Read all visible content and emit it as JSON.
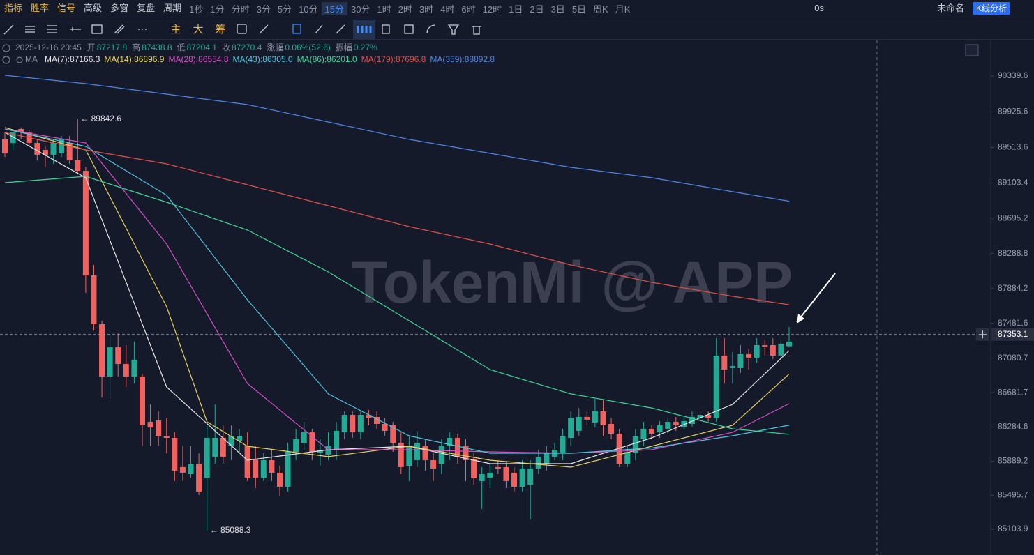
{
  "toolbar": {
    "items": [
      "指标",
      "胜率",
      "信号",
      "高级",
      "多窗",
      "复盘",
      "周期"
    ],
    "timeframes": [
      "1秒",
      "1分",
      "分时",
      "3分",
      "5分",
      "10分",
      "15分",
      "30分",
      "1时",
      "2时",
      "3时",
      "4时",
      "6时",
      "12时",
      "1日",
      "2日",
      "3日",
      "5日",
      "周K",
      "月K"
    ],
    "active_timeframe": "15分",
    "timer": "0s",
    "layout_name": "未命名",
    "analysis_button": "K线分析"
  },
  "drawing_tools": {
    "labels": [
      "主",
      "大",
      "筹"
    ]
  },
  "chart_data": {
    "type": "candlestick",
    "info": {
      "time": "2025-12-16 20:45",
      "fields": [
        {
          "label": "开",
          "value": 87217.8
        },
        {
          "label": "高",
          "value": 87438.8
        },
        {
          "label": "低",
          "value": 87204.1
        },
        {
          "label": "收",
          "value": 87270.4
        }
      ],
      "change_label": "涨幅",
      "change": "0.06%(52.6)",
      "amplitude_label": "振幅",
      "amplitude": "0.27%"
    },
    "indicator": "MA",
    "up_color": "#22ab94",
    "down_color": "#f0625f",
    "ohlc": [
      [
        89607,
        89687,
        89405,
        89446
      ],
      [
        89566,
        89727,
        89486,
        89687
      ],
      [
        89727,
        89744,
        89607,
        89687
      ],
      [
        89687,
        89719,
        89526,
        89566
      ],
      [
        89566,
        89607,
        89365,
        89430
      ],
      [
        89486,
        89526,
        89284,
        89430
      ],
      [
        89430,
        89607,
        89325,
        89566
      ],
      [
        89446,
        89647,
        89405,
        89607
      ],
      [
        89566,
        89647,
        89325,
        89365
      ],
      [
        89365,
        89842.6,
        89204,
        89244
      ],
      [
        89244,
        89284,
        87835,
        88036
      ],
      [
        88036,
        88157,
        87400,
        87472
      ],
      [
        87472,
        87512,
        86626,
        86868
      ],
      [
        86868,
        87351,
        86610,
        87206
      ],
      [
        87206,
        87367,
        86868,
        87013
      ],
      [
        87013,
        87230,
        86747,
        86868
      ],
      [
        86868,
        87271,
        86787,
        87062
      ],
      [
        86868,
        86900,
        86062,
        86304
      ],
      [
        86344,
        86546,
        86062,
        86280
      ],
      [
        86360,
        86465,
        86062,
        86183
      ],
      [
        86183,
        86385,
        85982,
        86159
      ],
      [
        86159,
        86223,
        85660,
        85781
      ],
      [
        85821,
        86062,
        85660,
        85756
      ],
      [
        85740,
        86062,
        85700,
        85861
      ],
      [
        85861,
        85982,
        85499,
        85539
      ],
      [
        85700,
        86304,
        85088.3,
        86159
      ],
      [
        85942,
        86546,
        85861,
        86159
      ],
      [
        86159,
        86304,
        85861,
        85942
      ],
      [
        86062,
        86304,
        85901,
        86183
      ],
      [
        86127,
        86264,
        85982,
        86183
      ],
      [
        86062,
        86223,
        85660,
        85700
      ],
      [
        85917,
        86062,
        85579,
        85700
      ],
      [
        85700,
        85982,
        85660,
        85901
      ],
      [
        85901,
        86022,
        85660,
        85756
      ],
      [
        85756,
        85837,
        85483,
        85595
      ],
      [
        85595,
        86102,
        85539,
        85998
      ],
      [
        85998,
        86264,
        85901,
        86143
      ],
      [
        86102,
        86344,
        86022,
        86223
      ],
      [
        86223,
        86264,
        85901,
        85998
      ],
      [
        85982,
        86143,
        85837,
        86022
      ],
      [
        85966,
        86223,
        85901,
        86062
      ],
      [
        86022,
        86344,
        85901,
        86240
      ],
      [
        86223,
        86465,
        86143,
        86425
      ],
      [
        86425,
        86465,
        86159,
        86223
      ],
      [
        86223,
        86465,
        86143,
        86425
      ],
      [
        86425,
        86481,
        86304,
        86385
      ],
      [
        86401,
        86465,
        86264,
        86320
      ],
      [
        86320,
        86385,
        86183,
        86240
      ],
      [
        86304,
        86344,
        85998,
        86102
      ],
      [
        86102,
        86223,
        85740,
        85821
      ],
      [
        85837,
        86183,
        85660,
        86062
      ],
      [
        85901,
        86239,
        85821,
        86102
      ],
      [
        86062,
        86143,
        85781,
        85901
      ],
      [
        85901,
        85982,
        85660,
        85805
      ],
      [
        85861,
        86143,
        85740,
        86062
      ],
      [
        86062,
        86223,
        85901,
        86159
      ],
      [
        86159,
        86207,
        85861,
        85942
      ],
      [
        86062,
        86143,
        85660,
        85901
      ],
      [
        85917,
        85982,
        85620,
        85692
      ],
      [
        85660,
        85821,
        85338,
        85740
      ],
      [
        85700,
        85861,
        85579,
        85756
      ],
      [
        85821,
        85901,
        85740,
        85805
      ],
      [
        85821,
        85885,
        85579,
        85660
      ],
      [
        85756,
        85821,
        85539,
        85595
      ],
      [
        85595,
        85901,
        85539,
        85805
      ],
      [
        85619,
        85901,
        85217,
        85805
      ],
      [
        85805,
        86022,
        85740,
        85942
      ],
      [
        85861,
        86062,
        85781,
        85982
      ],
      [
        85942,
        86102,
        85901,
        86022
      ],
      [
        85982,
        86264,
        85901,
        86183
      ],
      [
        86159,
        86465,
        86062,
        86385
      ],
      [
        86240,
        86505,
        86183,
        86401
      ],
      [
        86401,
        86465,
        86304,
        86369
      ],
      [
        86336,
        86609,
        86280,
        86473
      ],
      [
        86465,
        86594,
        86183,
        86304
      ],
      [
        86320,
        86385,
        86143,
        86207
      ],
      [
        86207,
        86264,
        85821,
        85861
      ],
      [
        85861,
        86062,
        85821,
        85998
      ],
      [
        85982,
        86264,
        85901,
        86183
      ],
      [
        86143,
        86344,
        86062,
        86264
      ],
      [
        86264,
        86304,
        86143,
        86207
      ],
      [
        86223,
        86353,
        86159,
        86304
      ],
      [
        86264,
        86385,
        86207,
        86344
      ],
      [
        86344,
        86401,
        86240,
        86304
      ],
      [
        86288,
        86401,
        86264,
        86353
      ],
      [
        86320,
        86465,
        86288,
        86401
      ],
      [
        86385,
        86465,
        86328,
        86425
      ],
      [
        86425,
        86465,
        86344,
        86385
      ],
      [
        86385,
        87311,
        86344,
        87110
      ],
      [
        87110,
        87311,
        86787,
        86948
      ],
      [
        86965,
        87150,
        86787,
        86989
      ],
      [
        86965,
        87230,
        86908,
        87126
      ],
      [
        87126,
        87190,
        86948,
        87086
      ],
      [
        87086,
        87311,
        87029,
        87230
      ],
      [
        87230,
        87295,
        87110,
        87214
      ],
      [
        87230,
        87311,
        87070,
        87110
      ],
      [
        87110,
        87351,
        87045,
        87247
      ],
      [
        87217.8,
        87438.8,
        87204.1,
        87270.4
      ]
    ],
    "series": [
      {
        "name": "MA(7)",
        "legend": "MA(7):87166.3",
        "color": "#e8e8e8",
        "x": [
          0,
          10,
          20,
          30,
          40,
          50,
          60,
          70,
          80,
          90,
          97
        ],
        "values": [
          89687,
          89163,
          86747,
          85901,
          86022,
          86062,
          85861,
          85861,
          86159,
          86546,
          87166.3
        ]
      },
      {
        "name": "MA(14)",
        "legend": "MA(14):86896.9",
        "color": "#e5d25a",
        "x": [
          0,
          10,
          20,
          25,
          30,
          40,
          50,
          60,
          70,
          80,
          90,
          97
        ],
        "values": [
          89744,
          89486,
          87674,
          86344,
          86062,
          85942,
          86062,
          85901,
          85821,
          86062,
          86304,
          86896.9
        ]
      },
      {
        "name": "MA(28)",
        "legend": "MA(28):86554.8",
        "color": "#d84fc4",
        "x": [
          0,
          10,
          20,
          30,
          40,
          50,
          60,
          70,
          80,
          90,
          97
        ],
        "values": [
          89727,
          89566,
          88398,
          86787,
          86022,
          86022,
          85998,
          85982,
          86022,
          86223,
          86554.8
        ]
      },
      {
        "name": "MA(43)",
        "legend": "MA(43):86305.0",
        "color": "#4fc3dc",
        "x": [
          0,
          10,
          20,
          30,
          40,
          50,
          60,
          70,
          80,
          90,
          97
        ],
        "values": [
          89727,
          89526,
          88962,
          87754,
          86667,
          86183,
          85982,
          85982,
          86042,
          86183,
          86305.0
        ]
      },
      {
        "name": "MA(86)",
        "legend": "MA(86):86201.0",
        "color": "#3dd69a",
        "x": [
          0,
          10,
          20,
          30,
          40,
          50,
          60,
          70,
          80,
          90,
          97
        ],
        "values": [
          89107,
          89180,
          88882,
          88560,
          88076,
          87512,
          86948,
          86667,
          86505,
          86264,
          86201.0
        ]
      },
      {
        "name": "MA(179)",
        "legend": "MA(179):87696.8",
        "color": "#e0524a",
        "x": [
          0,
          10,
          20,
          30,
          40,
          50,
          60,
          70,
          80,
          90,
          97
        ],
        "values": [
          89687,
          89486,
          89325,
          89083,
          88841,
          88600,
          88398,
          88157,
          87956,
          87795,
          87696.8
        ]
      },
      {
        "name": "MA(359)",
        "legend": "MA(359):88892.8",
        "color": "#4f86e6",
        "x": [
          0,
          10,
          20,
          30,
          40,
          50,
          60,
          70,
          80,
          90,
          97
        ],
        "values": [
          90348,
          90251,
          90130,
          90009,
          89808,
          89607,
          89446,
          89284,
          89164,
          89003,
          88892.8
        ]
      }
    ],
    "ylim": [
      84805.8,
      90750.4
    ],
    "yticks": [
      90339.6,
      89925.6,
      89513.6,
      89103.4,
      88695.2,
      88288.8,
      87884.2,
      87481.6,
      87080.7,
      86681.7,
      86284.6,
      85889.2,
      85495.7,
      85103.9
    ],
    "grid": false,
    "last_price": 87353.1,
    "annotations": [
      {
        "text": "← 89842.6",
        "value": 89842.6,
        "index": 9
      },
      {
        "text": "← 85088.3",
        "value": 85088.3,
        "index": 25
      }
    ],
    "watermark": "TokenMi @ APP"
  }
}
